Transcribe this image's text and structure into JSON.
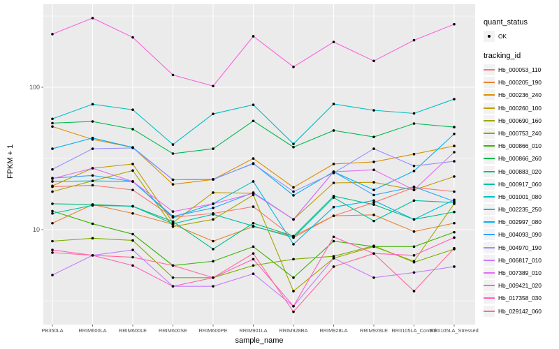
{
  "figure": {
    "background": "#FFFFFF"
  },
  "panel": {
    "background": "#EBEBEB",
    "grid_color": "#FFFFFF",
    "axis_text_color": "#4D4D4D",
    "tick_color": "#333333",
    "legend_key_bg": "#F2F2F2"
  },
  "legend": {
    "quant_status": {
      "title": "quant_status",
      "items": [
        {
          "label": "OK",
          "marker": "point",
          "color": "#000000"
        }
      ]
    },
    "tracking_id": {
      "title": "tracking_id"
    }
  },
  "chart_data": {
    "type": "line",
    "x_label": "sample_name",
    "y_label": "FPKM + 1",
    "y_scale": "log10",
    "grid": true,
    "legend_position": "right",
    "marker": {
      "shape": "point",
      "color": "#000000"
    },
    "y_ticks": [
      {
        "value": 100,
        "label": "100"
      },
      {
        "value": 10,
        "label": "10"
      }
    ],
    "y_minor": [
      316.23,
      31.62,
      3.162
    ],
    "ylim": [
      2.1,
      380
    ],
    "categories": [
      "PB350LA",
      "RRIM600LA",
      "RRIM600LE",
      "RRIM600SE",
      "RRIM600PE",
      "RRIM901LA",
      "RRIM928BA",
      "RRIM928LA",
      "RRIM928LE",
      "RRII105LA_Control",
      "RRII105LA_Stressed"
    ],
    "series": [
      {
        "name": "Hb_000053_110",
        "color": "#F8766D",
        "values": [
          20,
          20.5,
          19,
          12.2,
          13,
          14.5,
          8.8,
          12.5,
          15.5,
          19.8,
          18.5
        ]
      },
      {
        "name": "Hb_000205_190",
        "color": "#EA8331",
        "values": [
          11.1,
          15,
          13,
          10.9,
          8.3,
          10.5,
          9,
          12.5,
          12.7,
          9.7,
          11.1
        ]
      },
      {
        "name": "Hb_000236_240",
        "color": "#D89000",
        "values": [
          53,
          43,
          37.8,
          20.8,
          22.5,
          31.6,
          19.8,
          28.9,
          29.9,
          33.9,
          38.7
        ]
      },
      {
        "name": "Hb_000260_100",
        "color": "#C09B00",
        "values": [
          20.3,
          27,
          28.9,
          11.2,
          18.2,
          18,
          11.8,
          21.3,
          21.5,
          19,
          23.6
        ]
      },
      {
        "name": "Hb_000690_160",
        "color": "#A3A500",
        "values": [
          18.5,
          22,
          26,
          10.5,
          11.8,
          17.5,
          3.7,
          6.3,
          7.6,
          6,
          15.2
        ]
      },
      {
        "name": "Hb_000753_240",
        "color": "#7CAE00",
        "values": [
          8.3,
          8.7,
          8.4,
          4.6,
          4.6,
          5.6,
          6.2,
          6.5,
          7.7,
          5.9,
          7.3
        ]
      },
      {
        "name": "Hb_000866_010",
        "color": "#39B600",
        "values": [
          13.5,
          11,
          9.3,
          5.6,
          6,
          7.6,
          4.6,
          8.3,
          7.6,
          7.6,
          9.6
        ]
      },
      {
        "name": "Hb_000866_260",
        "color": "#00BB4E",
        "values": [
          56,
          57.5,
          50.8,
          34.2,
          37,
          58,
          38,
          49.7,
          44.8,
          55.6,
          52.5
        ]
      },
      {
        "name": "Hb_000883_020",
        "color": "#00BF7D",
        "values": [
          15.2,
          15,
          14.6,
          11.4,
          7.3,
          11.1,
          9,
          17.2,
          15,
          11.8,
          13.3
        ]
      },
      {
        "name": "Hb_000917_060",
        "color": "#00C1A3",
        "values": [
          13,
          14.8,
          14.6,
          11,
          12.8,
          10.6,
          8.8,
          16.8,
          11.5,
          16,
          15.5
        ]
      },
      {
        "name": "Hb_001001_080",
        "color": "#00BFC4",
        "values": [
          60,
          76,
          69.5,
          39.6,
          65,
          75.3,
          40,
          76.3,
          68.9,
          65.5,
          82.5
        ]
      },
      {
        "name": "Hb_002235_250",
        "color": "#00BAE0",
        "values": [
          21.8,
          22,
          21.8,
          12.2,
          15.2,
          21.8,
          7.9,
          14.4,
          16,
          11.8,
          16.2
        ]
      },
      {
        "name": "Hb_002997_080",
        "color": "#00B0F6",
        "values": [
          37,
          44,
          37.8,
          22.4,
          22.5,
          29.2,
          17.4,
          25.5,
          19,
          25.8,
          47
        ]
      },
      {
        "name": "Hb_004093_090",
        "color": "#35A2FF",
        "values": [
          23,
          24,
          21.8,
          12.4,
          14.2,
          18.2,
          11.8,
          25.5,
          17.5,
          20,
          15.8
        ]
      },
      {
        "name": "Hb_004970_190",
        "color": "#9590FF",
        "values": [
          26.5,
          37,
          37.5,
          22.4,
          22.6,
          29,
          18.5,
          25,
          37,
          28,
          30.2
        ]
      },
      {
        "name": "Hb_006817_010",
        "color": "#C77CFF",
        "values": [
          4.8,
          6.6,
          7.2,
          4,
          4,
          4.9,
          2.9,
          6.3,
          4.6,
          5,
          5.5
        ]
      },
      {
        "name": "Hb_007389_010",
        "color": "#E76BF3",
        "values": [
          22.8,
          27,
          21.8,
          13.4,
          15.2,
          18,
          11.8,
          25.5,
          26.3,
          19,
          35
        ]
      },
      {
        "name": "Hb_009421_020",
        "color": "#FA62DB",
        "values": [
          236,
          306,
          224,
          122,
          102,
          228,
          139,
          208,
          153,
          214,
          277
        ]
      },
      {
        "name": "Hb_017358_030",
        "color": "#FF62BC",
        "values": [
          7.2,
          6.6,
          5.6,
          4,
          4.6,
          6.2,
          2.9,
          8.9,
          6.8,
          6.6,
          8.8
        ]
      },
      {
        "name": "Hb_029142_060",
        "color": "#FF6A98",
        "values": [
          6.9,
          6.6,
          6.4,
          5.6,
          4.6,
          6.8,
          2.65,
          5.5,
          6.8,
          3.7,
          7.4
        ]
      }
    ]
  }
}
